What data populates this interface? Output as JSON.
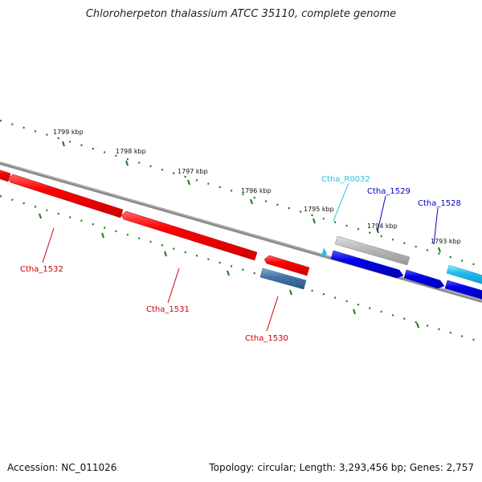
{
  "title": "Chloroherpeton thalassium ATCC 35110, complete genome",
  "footer": {
    "accession": "Accession: NC_011026",
    "summary": "Topology: circular; Length: 3,293,456 bp; Genes: 2,757"
  },
  "ticks": [
    "1799 kbp",
    "1798 kbp",
    "1797 kbp",
    "1796 kbp",
    "1795 kbp",
    "1794 kbp",
    "1793 kbp"
  ],
  "genes": [
    {
      "label": "Ctha_1532",
      "color": "#cc0000"
    },
    {
      "label": "Ctha_1531",
      "color": "#cc0000"
    },
    {
      "label": "Ctha_1530",
      "color": "#cc0000"
    },
    {
      "label": "Ctha_R0032",
      "color": "#33bbdd"
    },
    {
      "label": "Ctha_1529",
      "color": "#0000cc"
    },
    {
      "label": "Ctha_1528",
      "color": "#0000cc"
    }
  ],
  "colors": {
    "backbone": "#808080",
    "tick_marks": "#1a7a1a",
    "reverse_strand": "#ff0000",
    "forward_strand": "#0000ee",
    "pseudo_gene": "#4477aa",
    "rna_gene": "#bbbbbb",
    "trna_gene": "#22bbee"
  }
}
